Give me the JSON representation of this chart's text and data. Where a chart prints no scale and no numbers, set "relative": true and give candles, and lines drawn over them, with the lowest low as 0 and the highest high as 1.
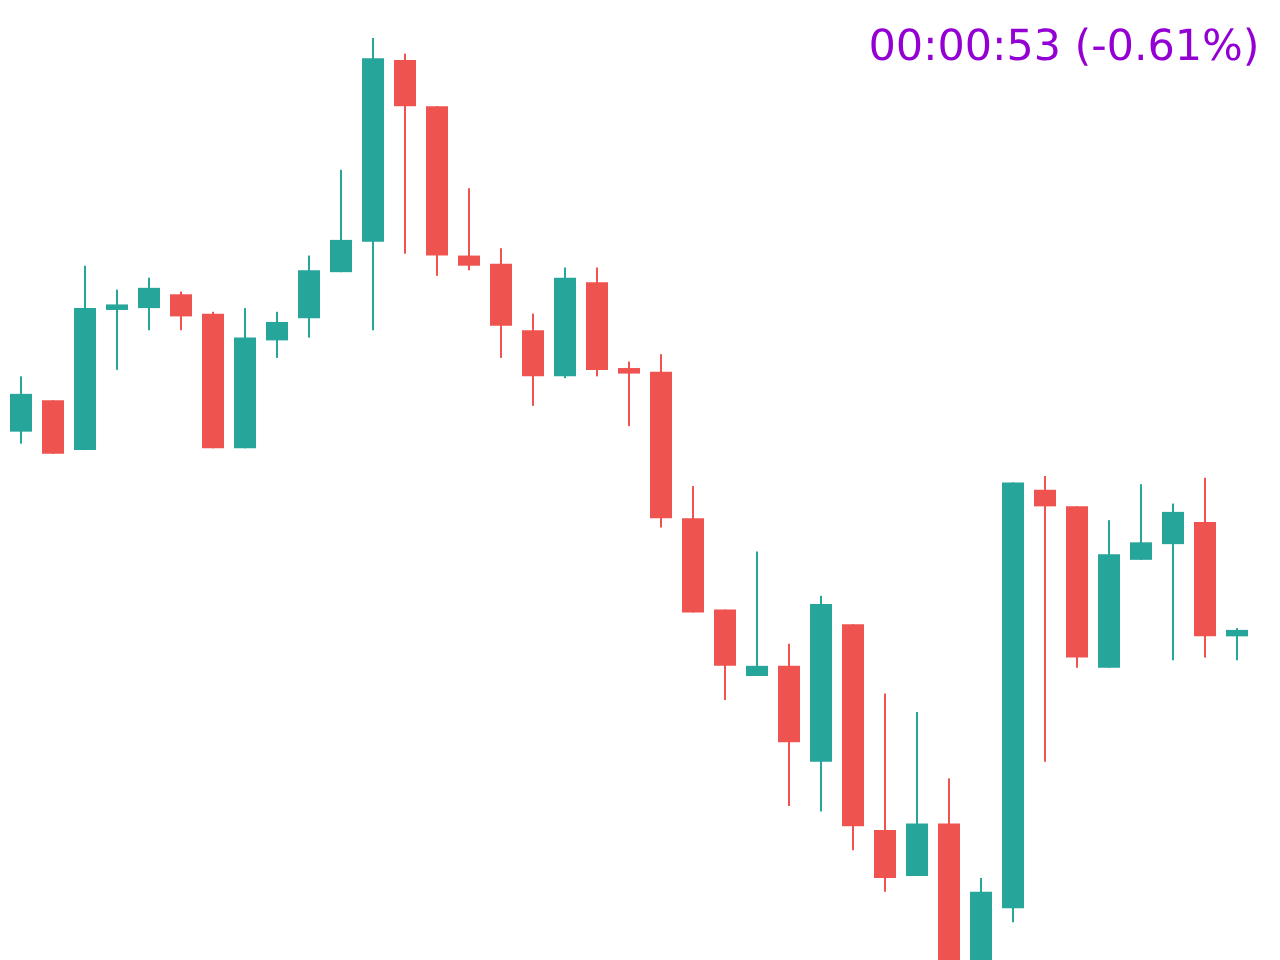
{
  "chart_data": {
    "type": "candlestick",
    "relative": true,
    "annotations": [
      "00:00:53 (-0.61%)"
    ],
    "categories": [
      null,
      null,
      null,
      null,
      null,
      null,
      null,
      null,
      null,
      null,
      null,
      null,
      null,
      null,
      null,
      null,
      null,
      null,
      null,
      null,
      null,
      null,
      null,
      null,
      null,
      null,
      null,
      null,
      null,
      null,
      null,
      null,
      null,
      null,
      null,
      null,
      null,
      null,
      null
    ],
    "ohlc": [
      [
        0.573,
        0.633,
        0.56,
        0.614
      ],
      [
        0.607,
        0.607,
        0.549,
        0.549
      ],
      [
        0.553,
        0.753,
        0.553,
        0.707
      ],
      [
        0.705,
        0.727,
        0.64,
        0.711
      ],
      [
        0.707,
        0.74,
        0.683,
        0.729
      ],
      [
        0.722,
        0.725,
        0.683,
        0.698
      ],
      [
        0.701,
        0.703,
        0.555,
        0.555
      ],
      [
        0.555,
        0.707,
        0.555,
        0.675
      ],
      [
        0.672,
        0.703,
        0.653,
        0.692
      ],
      [
        0.696,
        0.764,
        0.675,
        0.748
      ],
      [
        0.746,
        0.857,
        0.746,
        0.781
      ],
      [
        0.779,
        1,
        0.683,
        0.978
      ],
      [
        0.976,
        0.983,
        0.766,
        0.926
      ],
      [
        0.926,
        0.926,
        0.742,
        0.764
      ],
      [
        0.764,
        0.837,
        0.748,
        0.753
      ],
      [
        0.755,
        0.772,
        0.653,
        0.688
      ],
      [
        0.683,
        0.701,
        0.601,
        0.633
      ],
      [
        0.633,
        0.751,
        0.631,
        0.74
      ],
      [
        0.735,
        0.751,
        0.633,
        0.64
      ],
      [
        0.642,
        0.649,
        0.579,
        0.636
      ],
      [
        0.638,
        0.657,
        0.469,
        0.479
      ],
      [
        0.479,
        0.514,
        0.377,
        0.377
      ],
      [
        0.38,
        0.38,
        0.282,
        0.319
      ],
      [
        0.308,
        0.443,
        0.308,
        0.319
      ],
      [
        0.319,
        0.343,
        0.167,
        0.236
      ],
      [
        0.215,
        0.395,
        0.161,
        0.386
      ],
      [
        0.364,
        0.364,
        0.119,
        0.145
      ],
      [
        0.141,
        0.289,
        0.074,
        0.089
      ],
      [
        0.091,
        0.269,
        0.091,
        0.148
      ],
      [
        0.148,
        0.197,
        0,
        0
      ],
      [
        0,
        0.089,
        0,
        0.074
      ],
      [
        0.056,
        0.518,
        0.041,
        0.518
      ],
      [
        0.51,
        0.525,
        0.215,
        0.492
      ],
      [
        0.492,
        0.492,
        0.317,
        0.328
      ],
      [
        0.317,
        0.477,
        0.317,
        0.44
      ],
      [
        0.434,
        0.516,
        0.434,
        0.453
      ],
      [
        0.451,
        0.495,
        0.325,
        0.486
      ],
      [
        0.475,
        0.523,
        0.328,
        0.351
      ],
      [
        0.351,
        0.36,
        0.325,
        0.358
      ]
    ],
    "colors": [
      "#26a69a",
      "#ef5350",
      "#26a69a",
      "#26a69a",
      "#26a69a",
      "#ef5350",
      "#ef5350",
      "#26a69a",
      "#26a69a",
      "#26a69a",
      "#26a69a",
      "#26a69a",
      "#ef5350",
      "#ef5350",
      "#ef5350",
      "#ef5350",
      "#ef5350",
      "#26a69a",
      "#ef5350",
      "#ef5350",
      "#ef5350",
      "#ef5350",
      "#ef5350",
      "#26a69a",
      "#ef5350",
      "#26a69a",
      "#ef5350",
      "#ef5350",
      "#26a69a",
      "#ef5350",
      "#26a69a",
      "#26a69a",
      "#ef5350",
      "#ef5350",
      "#26a69a",
      "#26a69a",
      "#26a69a",
      "#ef5350",
      "#26a69a"
    ]
  }
}
